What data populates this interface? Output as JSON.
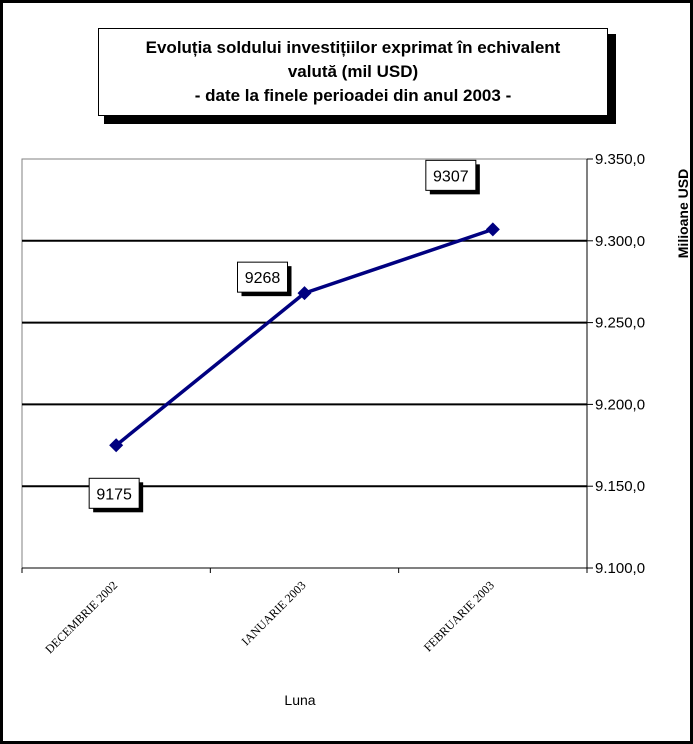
{
  "chart_data": {
    "type": "line",
    "title_lines": [
      "Evoluția soldului investițiilor exprimat în echivalent",
      "valută (mil USD)",
      "- date la finele perioadei din anul 2003 -"
    ],
    "categories": [
      "DECEMBRIE 2002",
      "IANUARIE 2003",
      "FEBRUARIE 2003"
    ],
    "series": [
      {
        "values": [
          9175,
          9268,
          9307
        ]
      }
    ],
    "data_labels": [
      "9175",
      "9268",
      "9307"
    ],
    "xlabel": "Luna",
    "ylabel": "Milioane USD",
    "ylim": [
      9100,
      9350
    ],
    "yticks": [
      9100,
      9150,
      9200,
      9250,
      9300,
      9350
    ],
    "ytick_labels": [
      "9.100,0",
      "9.150,0",
      "9.200,0",
      "9.250,0",
      "9.300,0",
      "9.350,0"
    ],
    "y_axis_position": "right",
    "grid": true,
    "legend": "none",
    "colors": {
      "line": "#000080",
      "marker": "#000080",
      "grid": "#000000"
    }
  }
}
